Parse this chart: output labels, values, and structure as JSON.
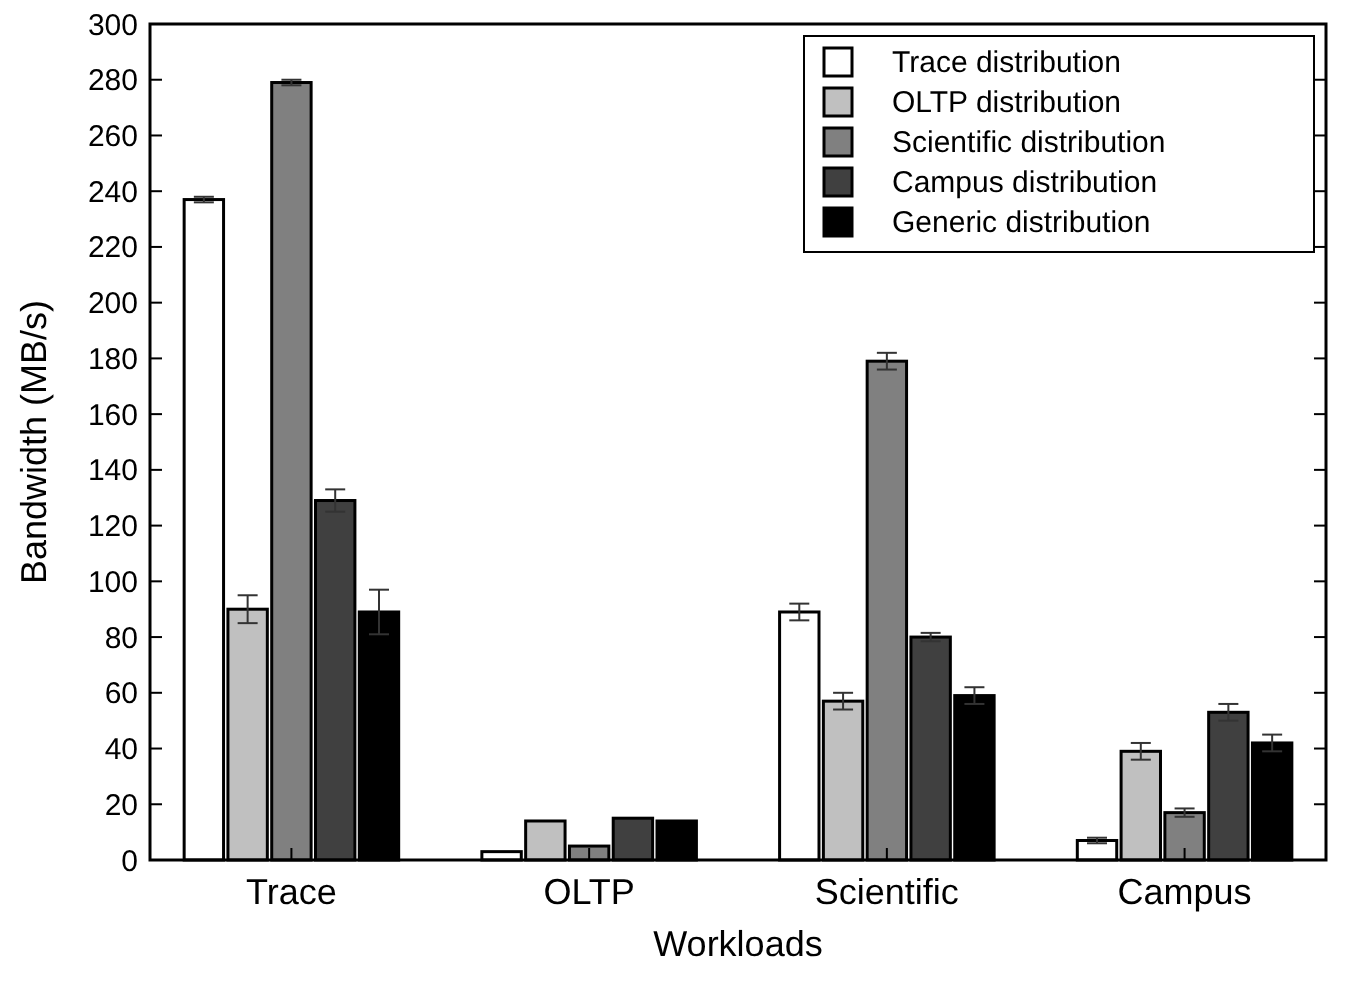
{
  "chart_data": {
    "type": "bar",
    "xlabel": "Workloads",
    "ylabel": "Bandwidth (MB/s)",
    "categories": [
      "Trace",
      "OLTP",
      "Scientific",
      "Campus"
    ],
    "series": [
      {
        "name": "Trace distribution",
        "color": "#ffffff",
        "values": [
          237,
          3,
          89,
          7
        ],
        "errors": [
          1,
          null,
          3,
          1
        ]
      },
      {
        "name": "OLTP distribution",
        "color": "#c0c0c0",
        "values": [
          90,
          14,
          57,
          39
        ],
        "errors": [
          5,
          null,
          3,
          3
        ]
      },
      {
        "name": "Scientific distribution",
        "color": "#808080",
        "values": [
          279,
          5,
          179,
          17
        ],
        "errors": [
          1,
          null,
          3,
          1.5
        ]
      },
      {
        "name": "Campus distribution",
        "color": "#404040",
        "values": [
          129,
          15,
          80,
          53
        ],
        "errors": [
          4,
          null,
          1.5,
          3
        ]
      },
      {
        "name": "Generic distribution",
        "color": "#000000",
        "values": [
          89,
          14,
          59,
          42
        ],
        "errors": [
          8,
          null,
          3,
          3
        ]
      }
    ],
    "ylim": [
      0,
      300
    ],
    "yticks": [
      0,
      20,
      40,
      60,
      80,
      100,
      120,
      140,
      160,
      180,
      200,
      220,
      240,
      260,
      280,
      300
    ],
    "legend": "top right"
  }
}
